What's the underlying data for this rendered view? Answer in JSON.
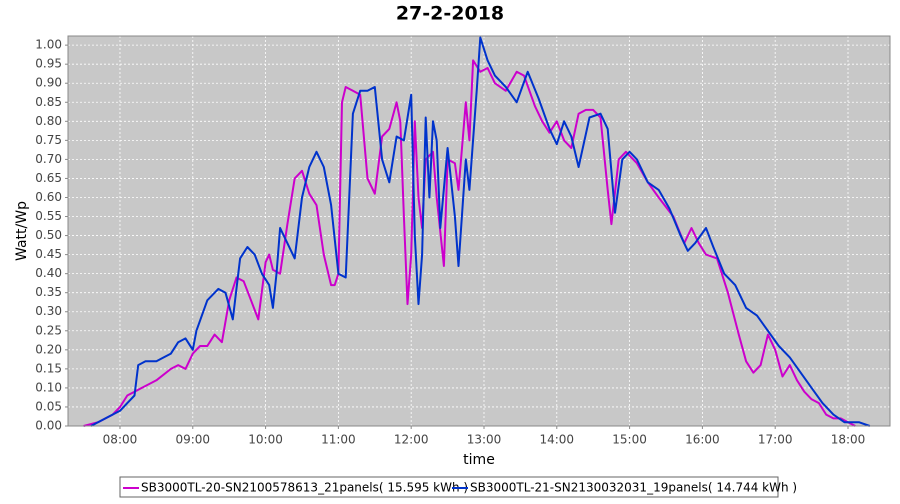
{
  "chart_data": {
    "type": "line",
    "title": "27-2-2018",
    "x_label": "time",
    "y_label": "Watt/Wp",
    "xlim": [
      7.286,
      18.577
    ],
    "xticks": [
      {
        "value": 8,
        "label": "08:00"
      },
      {
        "value": 9,
        "label": "09:00"
      },
      {
        "value": 10,
        "label": "10:00"
      },
      {
        "value": 11,
        "label": "11:00"
      },
      {
        "value": 12,
        "label": "12:00"
      },
      {
        "value": 13,
        "label": "13:00"
      },
      {
        "value": 14,
        "label": "14:00"
      },
      {
        "value": 15,
        "label": "15:00"
      },
      {
        "value": 16,
        "label": "16:00"
      },
      {
        "value": 17,
        "label": "17:00"
      },
      {
        "value": 18,
        "label": "18:00"
      }
    ],
    "ylim": [
      0,
      1.024
    ],
    "yticks": [
      {
        "value": 0,
        "label": "0.00"
      },
      {
        "value": 0.05,
        "label": "0.05"
      },
      {
        "value": 0.1,
        "label": "0.10"
      },
      {
        "value": 0.15,
        "label": "0.15"
      },
      {
        "value": 0.2,
        "label": "0.20"
      },
      {
        "value": 0.25,
        "label": "0.25"
      },
      {
        "value": 0.3,
        "label": "0.30"
      },
      {
        "value": 0.35,
        "label": "0.35"
      },
      {
        "value": 0.4,
        "label": "0.40"
      },
      {
        "value": 0.45,
        "label": "0.45"
      },
      {
        "value": 0.5,
        "label": "0.50"
      },
      {
        "value": 0.55,
        "label": "0.55"
      },
      {
        "value": 0.6,
        "label": "0.60"
      },
      {
        "value": 0.65,
        "label": "0.65"
      },
      {
        "value": 0.7,
        "label": "0.70"
      },
      {
        "value": 0.75,
        "label": "0.75"
      },
      {
        "value": 0.8,
        "label": "0.80"
      },
      {
        "value": 0.85,
        "label": "0.85"
      },
      {
        "value": 0.9,
        "label": "0.90"
      },
      {
        "value": 0.95,
        "label": "0.95"
      },
      {
        "value": 1,
        "label": "1.00"
      }
    ],
    "grid": true,
    "series": [
      {
        "name": "SB3000TL-20-SN2100578613_21panels( 15.595 kWh )",
        "color": "#cc00cc",
        "x": [
          7.5,
          7.7,
          7.9,
          8.0,
          8.1,
          8.2,
          8.3,
          8.5,
          8.7,
          8.8,
          8.9,
          9.0,
          9.1,
          9.2,
          9.3,
          9.4,
          9.5,
          9.6,
          9.7,
          9.8,
          9.9,
          10.0,
          10.05,
          10.1,
          10.2,
          10.3,
          10.4,
          10.5,
          10.6,
          10.7,
          10.8,
          10.9,
          10.95,
          11.0,
          11.05,
          11.1,
          11.2,
          11.3,
          11.4,
          11.5,
          11.6,
          11.7,
          11.8,
          11.85,
          11.9,
          11.95,
          12.0,
          12.05,
          12.1,
          12.15,
          12.2,
          12.3,
          12.35,
          12.45,
          12.5,
          12.6,
          12.65,
          12.75,
          12.8,
          12.85,
          12.95,
          13.05,
          13.15,
          13.3,
          13.45,
          13.55,
          13.7,
          13.8,
          13.9,
          14.0,
          14.1,
          14.2,
          14.3,
          14.4,
          14.5,
          14.6,
          14.7,
          14.75,
          14.85,
          14.95,
          15.1,
          15.25,
          15.4,
          15.6,
          15.75,
          15.85,
          15.95,
          16.05,
          16.2,
          16.35,
          16.5,
          16.6,
          16.7,
          16.8,
          16.9,
          17.0,
          17.1,
          17.2,
          17.3,
          17.4,
          17.5,
          17.6,
          17.7,
          17.8,
          17.9,
          18.0,
          18.1
        ],
        "values": [
          0.0,
          0.01,
          0.03,
          0.05,
          0.08,
          0.09,
          0.1,
          0.12,
          0.15,
          0.16,
          0.15,
          0.19,
          0.21,
          0.21,
          0.24,
          0.22,
          0.33,
          0.39,
          0.38,
          0.33,
          0.28,
          0.43,
          0.45,
          0.41,
          0.4,
          0.53,
          0.65,
          0.67,
          0.61,
          0.58,
          0.45,
          0.37,
          0.37,
          0.4,
          0.85,
          0.89,
          0.88,
          0.87,
          0.65,
          0.61,
          0.76,
          0.78,
          0.85,
          0.8,
          0.55,
          0.32,
          0.45,
          0.8,
          0.6,
          0.52,
          0.7,
          0.72,
          0.6,
          0.42,
          0.7,
          0.69,
          0.62,
          0.85,
          0.75,
          0.96,
          0.93,
          0.94,
          0.9,
          0.88,
          0.93,
          0.92,
          0.84,
          0.8,
          0.77,
          0.8,
          0.75,
          0.73,
          0.82,
          0.83,
          0.83,
          0.81,
          0.62,
          0.53,
          0.7,
          0.72,
          0.69,
          0.64,
          0.6,
          0.55,
          0.48,
          0.52,
          0.48,
          0.45,
          0.44,
          0.35,
          0.24,
          0.17,
          0.14,
          0.16,
          0.24,
          0.2,
          0.13,
          0.16,
          0.12,
          0.09,
          0.07,
          0.06,
          0.03,
          0.02,
          0.02,
          0.01,
          0.0
        ]
      },
      {
        "name": "SB3000TL-21-SN2130032031_19panels( 14.744 kWh )",
        "color": "#0033cc",
        "x": [
          7.6,
          7.8,
          8.0,
          8.1,
          8.2,
          8.25,
          8.35,
          8.5,
          8.6,
          8.7,
          8.8,
          8.9,
          9.0,
          9.05,
          9.2,
          9.35,
          9.45,
          9.55,
          9.65,
          9.75,
          9.85,
          9.95,
          10.05,
          10.1,
          10.15,
          10.2,
          10.3,
          10.4,
          10.5,
          10.6,
          10.7,
          10.8,
          10.9,
          11.0,
          11.1,
          11.2,
          11.3,
          11.4,
          11.5,
          11.6,
          11.7,
          11.8,
          11.9,
          12.0,
          12.05,
          12.1,
          12.15,
          12.2,
          12.25,
          12.3,
          12.35,
          12.4,
          12.5,
          12.6,
          12.65,
          12.75,
          12.8,
          12.9,
          12.95,
          13.05,
          13.15,
          13.3,
          13.45,
          13.6,
          13.75,
          13.9,
          14.0,
          14.1,
          14.2,
          14.3,
          14.45,
          14.6,
          14.7,
          14.8,
          14.9,
          15.0,
          15.1,
          15.25,
          15.4,
          15.55,
          15.7,
          15.8,
          15.9,
          16.05,
          16.15,
          16.3,
          16.45,
          16.6,
          16.75,
          16.9,
          17.05,
          17.2,
          17.35,
          17.5,
          17.65,
          17.8,
          17.95,
          18.15,
          18.3
        ],
        "values": [
          0.0,
          0.02,
          0.04,
          0.06,
          0.08,
          0.16,
          0.17,
          0.17,
          0.18,
          0.19,
          0.22,
          0.23,
          0.2,
          0.25,
          0.33,
          0.36,
          0.35,
          0.28,
          0.44,
          0.47,
          0.45,
          0.4,
          0.37,
          0.31,
          0.4,
          0.52,
          0.48,
          0.44,
          0.6,
          0.68,
          0.72,
          0.68,
          0.58,
          0.4,
          0.39,
          0.82,
          0.88,
          0.88,
          0.89,
          0.7,
          0.64,
          0.76,
          0.75,
          0.87,
          0.5,
          0.32,
          0.45,
          0.81,
          0.6,
          0.8,
          0.75,
          0.52,
          0.73,
          0.55,
          0.42,
          0.7,
          0.62,
          0.88,
          1.02,
          0.96,
          0.92,
          0.89,
          0.85,
          0.93,
          0.86,
          0.78,
          0.74,
          0.8,
          0.76,
          0.68,
          0.81,
          0.82,
          0.78,
          0.56,
          0.7,
          0.72,
          0.7,
          0.64,
          0.62,
          0.57,
          0.5,
          0.46,
          0.48,
          0.52,
          0.47,
          0.4,
          0.37,
          0.31,
          0.29,
          0.25,
          0.21,
          0.18,
          0.14,
          0.1,
          0.06,
          0.03,
          0.01,
          0.01,
          0.0
        ]
      }
    ]
  }
}
